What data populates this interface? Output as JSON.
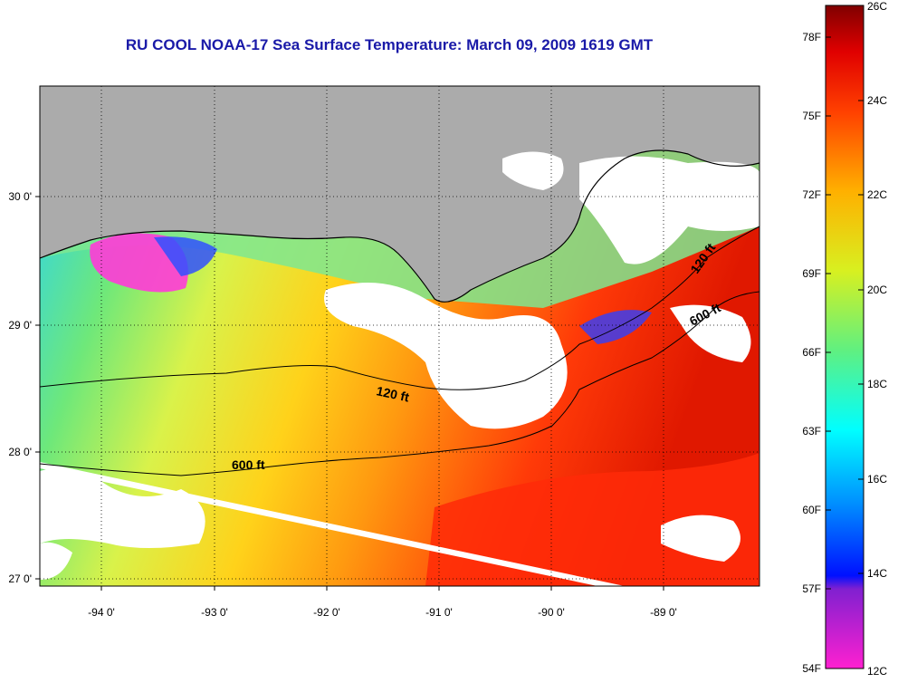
{
  "title": "RU COOL  NOAA-17  Sea Surface Temperature:  March 09, 2009 1619 GMT",
  "map": {
    "lon_ticks": [
      "-94 0'",
      "-93 0'",
      "-92 0'",
      "-91 0'",
      "-90 0'",
      "-89 0'"
    ],
    "lat_ticks": [
      "30 0'",
      "29 0'",
      "28 0'",
      "27 0'"
    ],
    "contour_labels": [
      "120 ft",
      "600 ft",
      "120 ft",
      "600 ft"
    ],
    "colors": {
      "land": "#ababab",
      "cloud": "#ffffff",
      "frame": "#000000"
    }
  },
  "colorbar": {
    "fahrenheit_labels": [
      "78F",
      "75F",
      "72F",
      "69F",
      "66F",
      "63F",
      "60F",
      "57F",
      "54F"
    ],
    "celsius_labels": [
      "26C",
      "24C",
      "22C",
      "20C",
      "18C",
      "16C",
      "14C",
      "12C"
    ]
  }
}
